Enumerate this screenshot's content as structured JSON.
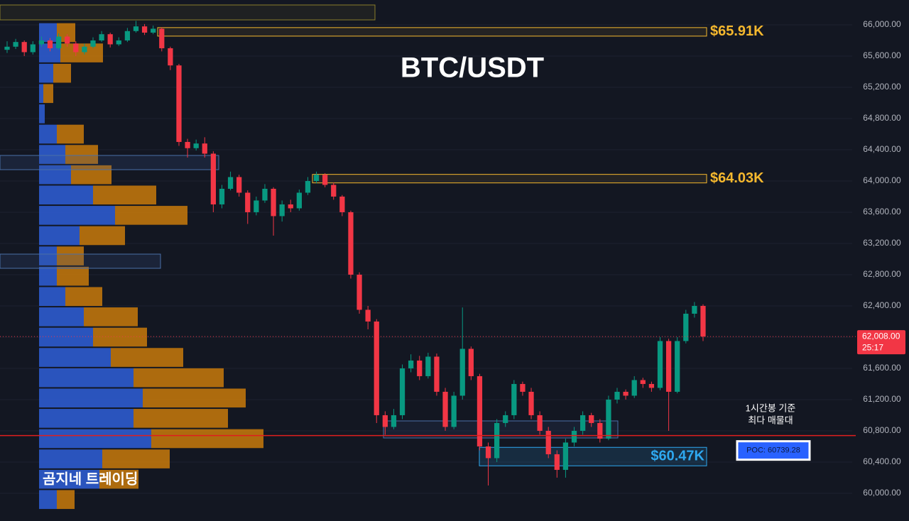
{
  "chart_data": {
    "type": "candlestick",
    "title": "BTC/USDT",
    "candles": [
      [
        65680,
        65790,
        65640,
        65720
      ],
      [
        65720,
        65820,
        65690,
        65780
      ],
      [
        65780,
        65800,
        65600,
        65650
      ],
      [
        65650,
        65790,
        65620,
        65750
      ],
      [
        65750,
        65850,
        65720,
        65800
      ],
      [
        65800,
        65830,
        65660,
        65700
      ],
      [
        65700,
        65890,
        65680,
        65850
      ],
      [
        65850,
        65880,
        65720,
        65760
      ],
      [
        65760,
        65790,
        65600,
        65650
      ],
      [
        65650,
        65760,
        65620,
        65720
      ],
      [
        65720,
        65840,
        65700,
        65800
      ],
      [
        65800,
        65920,
        65780,
        65880
      ],
      [
        65880,
        65900,
        65710,
        65750
      ],
      [
        65750,
        65840,
        65730,
        65800
      ],
      [
        65800,
        65960,
        65780,
        65920
      ],
      [
        65920,
        66050,
        65900,
        65980
      ],
      [
        65980,
        66010,
        65870,
        65900
      ],
      [
        65900,
        65990,
        65880,
        65950
      ],
      [
        65950,
        65970,
        65660,
        65700
      ],
      [
        65700,
        65720,
        65420,
        65480
      ],
      [
        65480,
        65500,
        64450,
        64500
      ],
      [
        64500,
        64540,
        64300,
        64420
      ],
      [
        64420,
        64530,
        64390,
        64480
      ],
      [
        64480,
        64560,
        64300,
        64350
      ],
      [
        64350,
        64380,
        63600,
        63700
      ],
      [
        63700,
        63950,
        63650,
        63900
      ],
      [
        63900,
        64120,
        63880,
        64050
      ],
      [
        64050,
        64080,
        63800,
        63850
      ],
      [
        63850,
        63880,
        63450,
        63600
      ],
      [
        63600,
        63800,
        63560,
        63750
      ],
      [
        63750,
        63960,
        63720,
        63900
      ],
      [
        63900,
        63920,
        63300,
        63550
      ],
      [
        63550,
        63750,
        63480,
        63700
      ],
      [
        63700,
        63760,
        63600,
        63650
      ],
      [
        63650,
        63890,
        63620,
        63850
      ],
      [
        63850,
        64050,
        63820,
        64000
      ],
      [
        64000,
        64120,
        63970,
        64080
      ],
      [
        64080,
        64100,
        63920,
        63950
      ],
      [
        63950,
        63980,
        63760,
        63800
      ],
      [
        63800,
        63820,
        63550,
        63600
      ],
      [
        63600,
        63620,
        62750,
        62800
      ],
      [
        62800,
        62830,
        62300,
        62350
      ],
      [
        62350,
        62400,
        62100,
        62200
      ],
      [
        62200,
        62230,
        60900,
        61000
      ],
      [
        61000,
        61050,
        60750,
        60850
      ],
      [
        60850,
        61080,
        60820,
        61000
      ],
      [
        61000,
        61650,
        60950,
        61600
      ],
      [
        61600,
        61780,
        61550,
        61700
      ],
      [
        61700,
        61760,
        61450,
        61500
      ],
      [
        61500,
        61800,
        61470,
        61750
      ],
      [
        61750,
        61790,
        61250,
        61300
      ],
      [
        61300,
        61350,
        60800,
        60850
      ],
      [
        60850,
        61300,
        60820,
        61250
      ],
      [
        61250,
        62380,
        61200,
        61850
      ],
      [
        61850,
        61880,
        61450,
        61500
      ],
      [
        61500,
        61530,
        60550,
        60600
      ],
      [
        60600,
        60650,
        60100,
        60450
      ],
      [
        60450,
        60950,
        60400,
        60900
      ],
      [
        60900,
        61050,
        60850,
        61000
      ],
      [
        61000,
        61450,
        60950,
        61400
      ],
      [
        61400,
        61430,
        61250,
        61300
      ],
      [
        61300,
        61350,
        60950,
        61000
      ],
      [
        61000,
        61050,
        60750,
        60800
      ],
      [
        60800,
        60850,
        60450,
        60500
      ],
      [
        60500,
        60550,
        60200,
        60300
      ],
      [
        60300,
        60700,
        60200,
        60650
      ],
      [
        60650,
        60850,
        60600,
        60800
      ],
      [
        60800,
        61050,
        60750,
        61000
      ],
      [
        61000,
        61030,
        60850,
        60900
      ],
      [
        60900,
        60950,
        60650,
        60700
      ],
      [
        60700,
        61250,
        60680,
        61200
      ],
      [
        61200,
        61350,
        61150,
        61300
      ],
      [
        61300,
        61330,
        61200,
        61250
      ],
      [
        61250,
        61500,
        61220,
        61450
      ],
      [
        61450,
        61480,
        61350,
        61400
      ],
      [
        61400,
        61430,
        61300,
        61350
      ],
      [
        61350,
        62000,
        61320,
        61950
      ],
      [
        61950,
        61980,
        60800,
        61300
      ],
      [
        61300,
        62000,
        61280,
        61950
      ],
      [
        61950,
        62350,
        61920,
        62300
      ],
      [
        62300,
        62450,
        62250,
        62400
      ],
      [
        62400,
        62420,
        61950,
        62008
      ]
    ],
    "up_color": "#089981",
    "down_color": "#f23645",
    "ylim": [
      59645,
      66318
    ],
    "yticks": [
      {
        "value": 60000,
        "label": "60,000.00"
      },
      {
        "value": 60400,
        "label": "60,400.00"
      },
      {
        "value": 60800,
        "label": "60,800.00"
      },
      {
        "value": 61200,
        "label": "61,200.00"
      },
      {
        "value": 61600,
        "label": "61,600.00"
      },
      {
        "value": 62000,
        "label": "62,000.00"
      },
      {
        "value": 62400,
        "label": "62,400.00"
      },
      {
        "value": 62800,
        "label": "62,800.00"
      },
      {
        "value": 63200,
        "label": "63,200.00"
      },
      {
        "value": 63600,
        "label": "63,600.00"
      },
      {
        "value": 64000,
        "label": "64,000.00"
      },
      {
        "value": 64400,
        "label": "64,400.00"
      },
      {
        "value": 64800,
        "label": "64,800.00"
      },
      {
        "value": 65200,
        "label": "65,200.00"
      },
      {
        "value": 65600,
        "label": "65,600.00"
      },
      {
        "value": 66000,
        "label": "66,000.00"
      }
    ],
    "last_price": {
      "value": 62008,
      "label": "62,008.00",
      "countdown": "25:17"
    },
    "zones": [
      {
        "price": 65910,
        "label": "$65.91K",
        "color": "#f5b82e"
      },
      {
        "price": 64030,
        "label": "$64.03K",
        "color": "#f5b82e"
      },
      {
        "price": 60470,
        "label": "$60.47K",
        "color": "#2ea8f0"
      }
    ],
    "poc": {
      "price": 60739.28,
      "label": "POC: 60739.28",
      "note": [
        "1시간봉 기준",
        "최다 매물대"
      ]
    },
    "volume_profile": {
      "levels": [
        65900,
        65640,
        65380,
        65120,
        64860,
        64600,
        64340,
        64080,
        63820,
        63560,
        63300,
        63040,
        62780,
        62520,
        62260,
        62000,
        61740,
        61480,
        61220,
        60960,
        60700,
        60440,
        60180,
        59920
      ],
      "xlim": [
        0,
        400
      ],
      "series": [
        {
          "name": "buy",
          "color": "#2f5fd8",
          "values": [
            25,
            30,
            20,
            6,
            8,
            25,
            37,
            45,
            76,
            107,
            57,
            25,
            25,
            37,
            63,
            76,
            101,
            133,
            146,
            133,
            158,
            89,
            85,
            25
          ]
        },
        {
          "name": "sell",
          "color": "#c97a0a",
          "values": [
            26,
            60,
            25,
            14,
            0,
            38,
            46,
            57,
            89,
            102,
            64,
            38,
            45,
            52,
            76,
            76,
            102,
            127,
            145,
            133,
            158,
            95,
            55,
            25
          ]
        }
      ]
    },
    "watermark": "곰지네 트레이딩"
  }
}
